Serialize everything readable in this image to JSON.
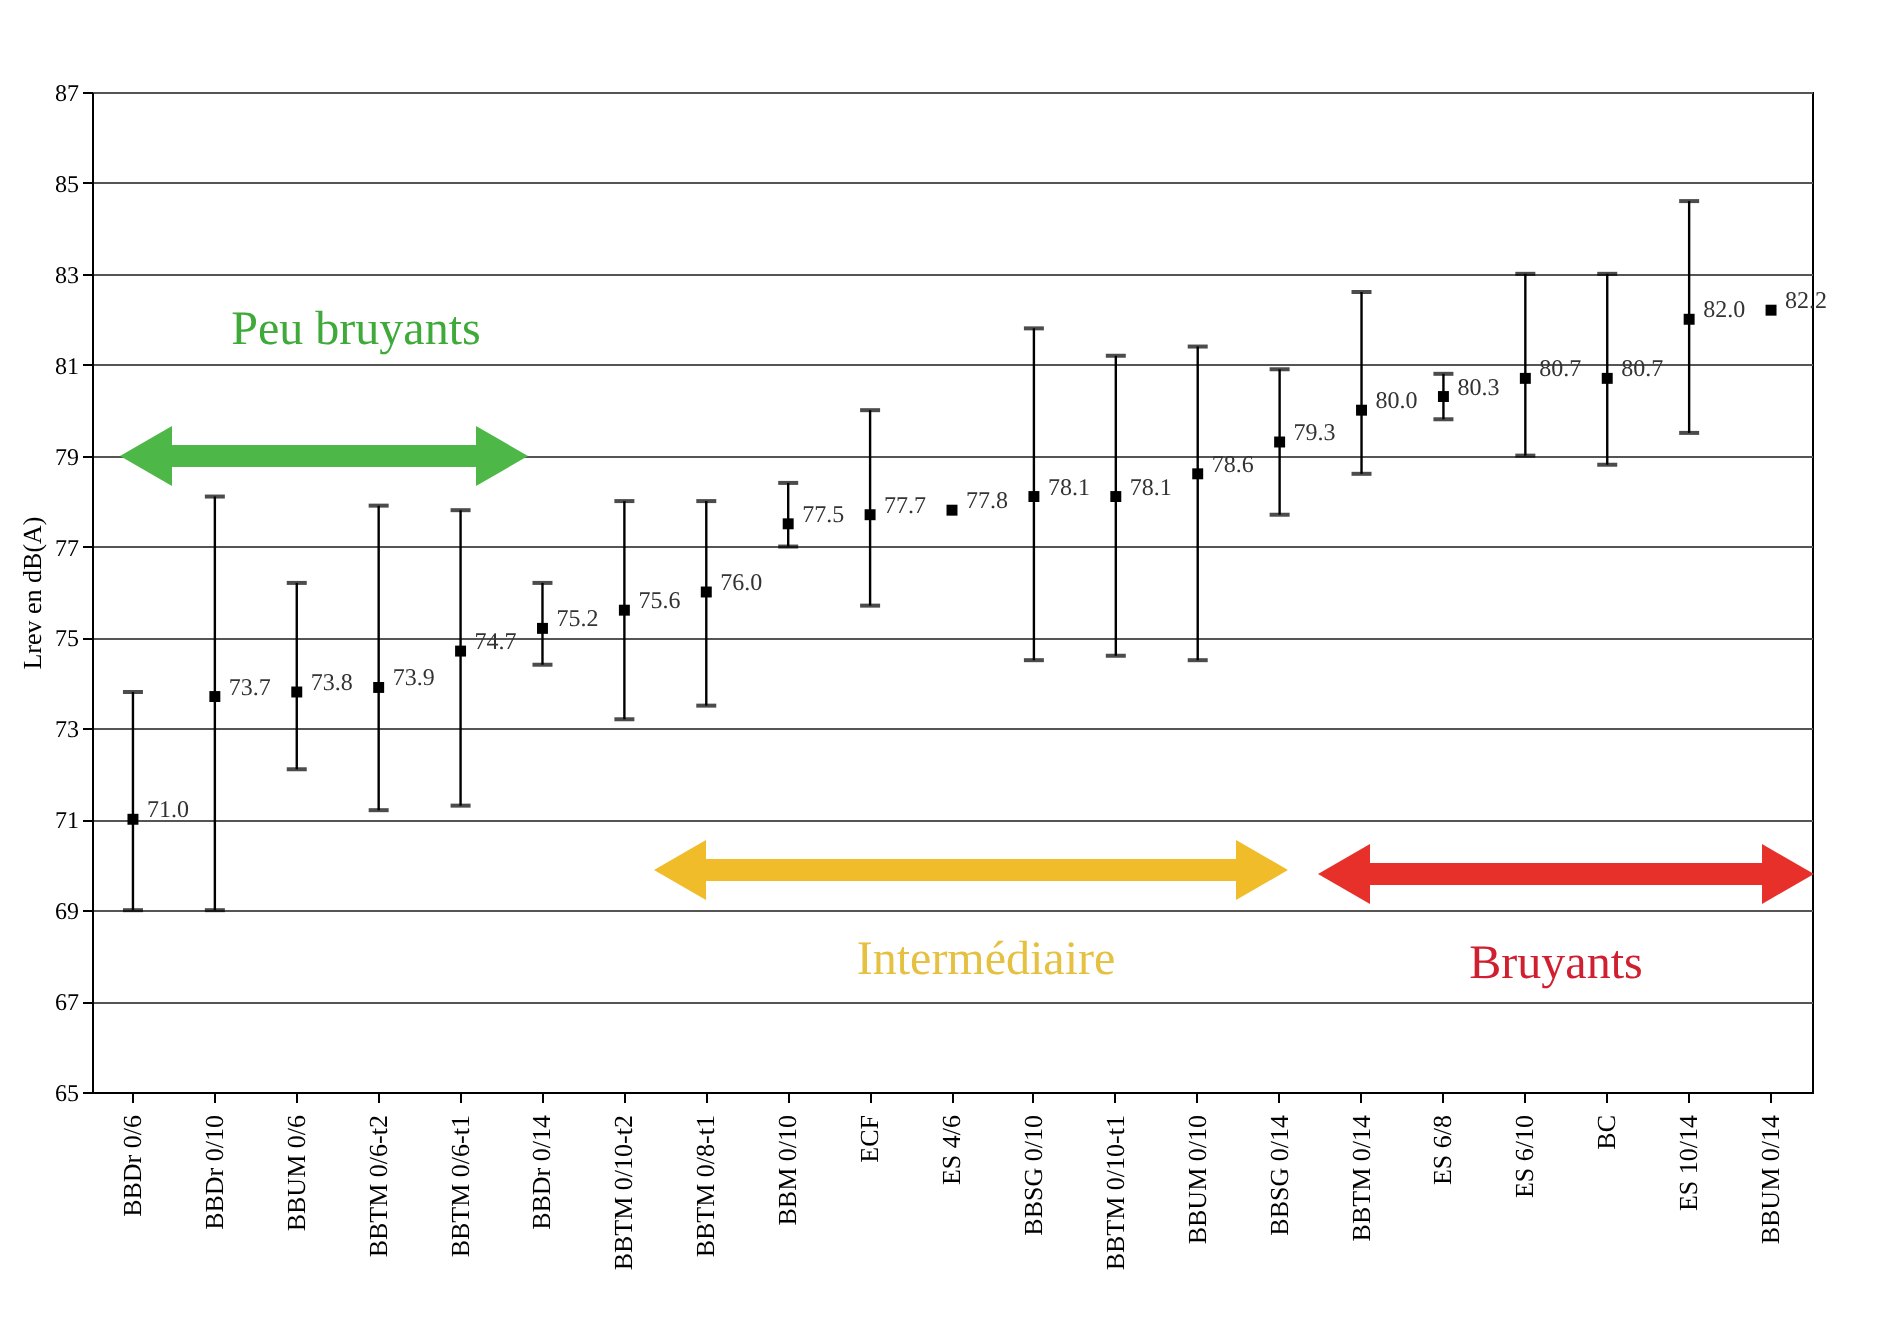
{
  "chart_data": {
    "type": "scatter",
    "ylabel": "Lrev en dB(A)",
    "categories": [
      "BBDr 0/6",
      "BBDr 0/10",
      "BBUM 0/6",
      "BBTM 0/6-t2",
      "BBTM 0/6-t1",
      "BBDr 0/14",
      "BBTM 0/10-t2",
      "BBTM 0/8-t1",
      "BBM 0/10",
      "ECF",
      "ES 4/6",
      "BBSG 0/10",
      "BBTM 0/10-t1",
      "BBUM 0/10",
      "BBSG 0/14",
      "BBTM 0/14",
      "ES 6/8",
      "ES 6/10",
      "BC",
      "ES 10/14",
      "BBUM 0/14"
    ],
    "series": [
      {
        "color": "#000000",
        "values": [
          71.0,
          73.7,
          73.8,
          73.9,
          74.7,
          75.2,
          75.6,
          76.0,
          77.5,
          77.7,
          77.8,
          78.1,
          78.1,
          78.6,
          79.3,
          80.0,
          80.3,
          80.7,
          80.7,
          82.0,
          82.2
        ],
        "errors": [
          [
            69.0,
            73.8
          ],
          [
            69.0,
            78.1
          ],
          [
            72.1,
            76.2
          ],
          [
            71.2,
            77.9
          ],
          [
            71.3,
            77.8
          ],
          [
            74.4,
            76.2
          ],
          [
            73.2,
            78.0
          ],
          [
            73.5,
            78.0
          ],
          [
            77.0,
            78.4
          ],
          [
            75.7,
            80.0
          ],
          null,
          [
            74.5,
            81.8
          ],
          [
            74.6,
            81.2
          ],
          [
            74.5,
            81.4
          ],
          [
            77.7,
            80.9
          ],
          [
            78.6,
            82.6
          ],
          [
            79.8,
            80.8
          ],
          [
            79.0,
            83.0
          ],
          [
            78.8,
            83.0
          ],
          [
            79.5,
            84.6
          ],
          null
        ]
      }
    ],
    "value_labels": [
      "71.0",
      "73.7",
      "73.8",
      "73.9",
      "74.7",
      "75.2",
      "75.6",
      "76.0",
      "77.5",
      "77.7",
      "77.8",
      "78.1",
      "78.1",
      "78.6",
      "79.3",
      "80.0",
      "80.3",
      "80.7",
      "80.7",
      "82.0",
      "82.2"
    ],
    "marker": "square",
    "ylim": [
      65,
      87
    ],
    "yticks": [
      65,
      67,
      69,
      71,
      73,
      75,
      77,
      79,
      81,
      83,
      85,
      87
    ],
    "grid": "y",
    "annotations": [
      "Peu bruyants",
      "Intermédiaire",
      "Bruyants"
    ]
  }
}
